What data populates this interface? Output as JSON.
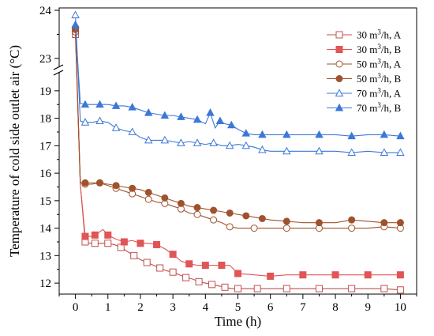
{
  "chart_data": {
    "type": "line",
    "xlabel": "Time (h)",
    "ylabel": "Temperature of cold side outlet air (°C)",
    "xlim": [
      -0.5,
      10.5
    ],
    "x_ticks": [
      "0",
      "1",
      "2",
      "3",
      "4",
      "5",
      "6",
      "7",
      "8",
      "9",
      "10"
    ],
    "y_axis_break": true,
    "ylim_lower": [
      11.6,
      19.6
    ],
    "y_ticks_lower": [
      "12",
      "13",
      "14",
      "15",
      "16",
      "17",
      "18",
      "19"
    ],
    "ylim_upper": [
      22.85,
      24.05
    ],
    "y_ticks_upper": [
      "23",
      "24"
    ],
    "grid": false,
    "legend_position": "top-right",
    "series": [
      {
        "name_main": "30 m",
        "name_sup": "3",
        "name_rest": "/h, A",
        "marker": "square",
        "filled": false,
        "color": "#c0504d",
        "x": [
          0,
          0.15,
          0.3,
          0.45,
          0.6,
          0.8,
          1.0,
          1.2,
          1.4,
          1.6,
          1.8,
          2.0,
          2.2,
          2.4,
          2.6,
          2.8,
          3.0,
          3.2,
          3.4,
          3.6,
          3.8,
          4.0,
          4.2,
          4.4,
          4.6,
          4.8,
          5.0,
          5.3,
          5.6,
          6.0,
          6.5,
          7.0,
          7.5,
          8.0,
          8.5,
          9.0,
          9.5,
          10.0
        ],
        "y": [
          23.5,
          15.6,
          13.5,
          13.45,
          13.45,
          13.45,
          13.45,
          13.4,
          13.3,
          13.15,
          13.0,
          12.85,
          12.75,
          12.65,
          12.55,
          12.45,
          12.4,
          12.3,
          12.2,
          12.15,
          12.05,
          12.0,
          11.95,
          11.9,
          11.85,
          11.8,
          11.8,
          11.8,
          11.8,
          11.8,
          11.8,
          11.8,
          11.8,
          11.8,
          11.8,
          11.8,
          11.8,
          11.75
        ]
      },
      {
        "name_main": "30 m",
        "name_sup": "3",
        "name_rest": "/h, B",
        "marker": "square",
        "filled": true,
        "color": "#e05555",
        "x": [
          0,
          0.15,
          0.3,
          0.45,
          0.6,
          0.85,
          1.0,
          1.25,
          1.5,
          1.75,
          2.0,
          2.25,
          2.5,
          2.75,
          3.0,
          3.25,
          3.5,
          3.75,
          4.0,
          4.25,
          4.5,
          4.75,
          5.0,
          5.5,
          6.0,
          6.5,
          7.0,
          7.5,
          8.0,
          8.5,
          9.0,
          9.5,
          10.0
        ],
        "y": [
          23.6,
          15.6,
          13.7,
          13.7,
          13.75,
          13.95,
          13.75,
          13.6,
          13.5,
          13.55,
          13.45,
          13.45,
          13.4,
          13.25,
          13.05,
          12.8,
          12.7,
          12.65,
          12.65,
          12.65,
          12.65,
          12.65,
          12.35,
          12.3,
          12.25,
          12.3,
          12.3,
          12.3,
          12.3,
          12.3,
          12.3,
          12.3,
          12.3
        ]
      },
      {
        "name_main": "50 m",
        "name_sup": "3",
        "name_rest": "/h, A",
        "marker": "circle",
        "filled": false,
        "color": "#a0522d",
        "x": [
          0,
          0.15,
          0.3,
          0.5,
          0.75,
          1.0,
          1.25,
          1.5,
          1.75,
          2.0,
          2.25,
          2.5,
          2.75,
          3.0,
          3.25,
          3.5,
          3.75,
          4.0,
          4.25,
          4.5,
          4.75,
          5.0,
          5.5,
          6.0,
          6.5,
          7.0,
          7.5,
          8.0,
          8.5,
          9.0,
          9.5,
          10.0
        ],
        "y": [
          23.55,
          15.65,
          15.6,
          15.6,
          15.65,
          15.55,
          15.45,
          15.35,
          15.25,
          15.15,
          15.05,
          14.95,
          14.9,
          14.8,
          14.7,
          14.55,
          14.5,
          14.4,
          14.3,
          14.2,
          14.05,
          14.0,
          14.0,
          14.0,
          14.0,
          14.0,
          14.0,
          14.0,
          14.0,
          14.0,
          14.05,
          14.0
        ]
      },
      {
        "name_main": "50 m",
        "name_sup": "3",
        "name_rest": "/h, B",
        "marker": "circle",
        "filled": true,
        "color": "#a0522d",
        "x": [
          0,
          0.15,
          0.3,
          0.5,
          0.75,
          1.0,
          1.25,
          1.5,
          1.75,
          2.0,
          2.25,
          2.5,
          2.75,
          3.0,
          3.25,
          3.5,
          3.75,
          4.0,
          4.25,
          4.5,
          4.75,
          5.0,
          5.25,
          5.5,
          5.75,
          6.0,
          6.5,
          7.0,
          7.5,
          8.0,
          8.5,
          9.0,
          9.5,
          10.0
        ],
        "y": [
          23.6,
          15.65,
          15.65,
          15.65,
          15.65,
          15.6,
          15.55,
          15.5,
          15.45,
          15.4,
          15.3,
          15.2,
          15.1,
          15.0,
          14.9,
          14.8,
          14.75,
          14.7,
          14.65,
          14.6,
          14.55,
          14.5,
          14.45,
          14.4,
          14.35,
          14.3,
          14.25,
          14.2,
          14.2,
          14.2,
          14.3,
          14.25,
          14.2,
          14.2
        ]
      },
      {
        "name_main": "70 m",
        "name_sup": "3",
        "name_rest": "/h, A",
        "marker": "triangle",
        "filled": false,
        "color": "#3c78d8",
        "x": [
          0,
          0.15,
          0.3,
          0.5,
          0.75,
          1.0,
          1.25,
          1.5,
          1.75,
          2.0,
          2.25,
          2.5,
          2.75,
          3.0,
          3.25,
          3.5,
          3.75,
          4.0,
          4.25,
          4.5,
          4.75,
          5.0,
          5.25,
          5.5,
          5.75,
          6.0,
          6.5,
          7.0,
          7.5,
          8.0,
          8.5,
          9.0,
          9.5,
          10.0
        ],
        "y": [
          23.9,
          17.9,
          17.85,
          17.85,
          17.9,
          17.85,
          17.65,
          17.55,
          17.5,
          17.3,
          17.2,
          17.2,
          17.2,
          17.15,
          17.1,
          17.15,
          17.1,
          17.05,
          17.1,
          17.0,
          17.0,
          17.05,
          17.0,
          16.95,
          16.85,
          16.8,
          16.8,
          16.8,
          16.8,
          16.8,
          16.75,
          16.8,
          16.75,
          16.75
        ]
      },
      {
        "name_main": "70 m",
        "name_sup": "3",
        "name_rest": "/h, B",
        "marker": "triangle",
        "filled": true,
        "color": "#3c78d8",
        "x": [
          0,
          0.15,
          0.3,
          0.5,
          0.75,
          1.0,
          1.25,
          1.5,
          1.75,
          2.0,
          2.25,
          2.5,
          2.75,
          3.0,
          3.25,
          3.5,
          3.75,
          4.0,
          4.15,
          4.3,
          4.45,
          4.6,
          4.8,
          5.0,
          5.25,
          5.5,
          5.75,
          6.0,
          6.5,
          7.0,
          7.5,
          8.0,
          8.5,
          9.0,
          9.5,
          10.0
        ],
        "y": [
          23.7,
          18.55,
          18.5,
          18.5,
          18.5,
          18.5,
          18.45,
          18.45,
          18.4,
          18.3,
          18.2,
          18.15,
          18.1,
          18.1,
          18.05,
          18.0,
          17.95,
          17.8,
          18.2,
          17.65,
          17.9,
          17.8,
          17.75,
          17.6,
          17.45,
          17.4,
          17.4,
          17.4,
          17.4,
          17.4,
          17.4,
          17.4,
          17.35,
          17.4,
          17.4,
          17.35
        ]
      }
    ]
  }
}
